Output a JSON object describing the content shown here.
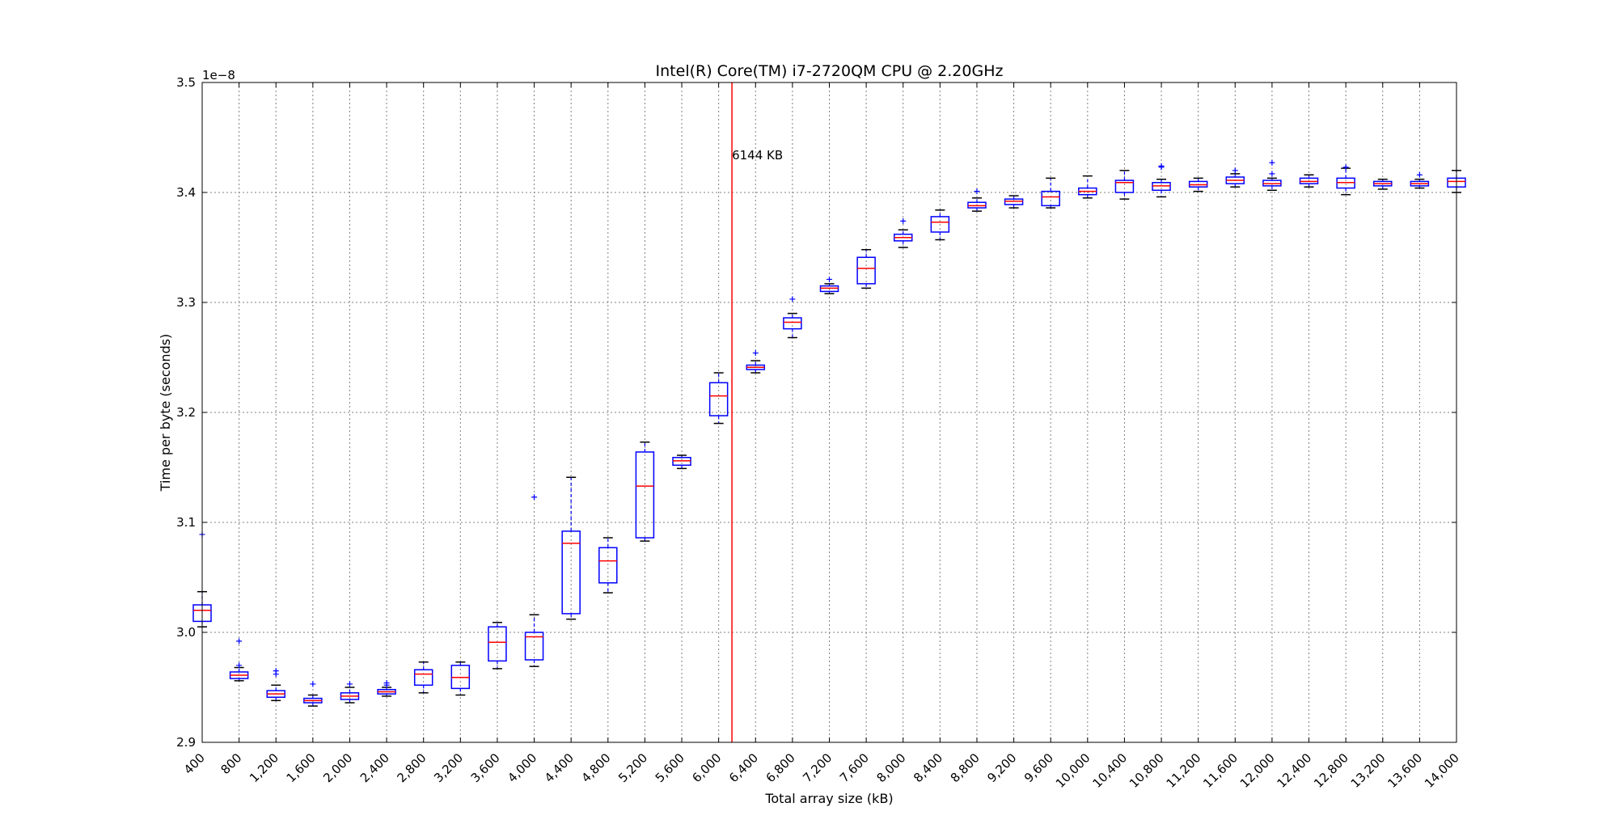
{
  "chart_data": {
    "type": "box",
    "title": "Intel(R) Core(TM) i7-2720QM CPU @ 2.20GHz",
    "xlabel": "Total array size (kB)",
    "ylabel": "Time per byte (seconds)",
    "y_exponent_label": "1e−8",
    "y_scale_factor": 1e-08,
    "ylim": [
      2.9,
      3.5
    ],
    "y_ticks": [
      "2.9",
      "3.0",
      "3.1",
      "3.2",
      "3.3",
      "3.4",
      "3.5"
    ],
    "grid": true,
    "categories": [
      "400",
      "800",
      "1,200",
      "1,600",
      "2,000",
      "2,400",
      "2,800",
      "3,200",
      "3,600",
      "4,000",
      "4,400",
      "4,800",
      "5,200",
      "5,600",
      "6,000",
      "6,400",
      "6,800",
      "7,200",
      "7,600",
      "8,000",
      "8,400",
      "8,800",
      "9,200",
      "9,600",
      "10,000",
      "10,400",
      "10,800",
      "11,200",
      "11,600",
      "12,000",
      "12,400",
      "12,800",
      "13,200",
      "13,600",
      "14,000"
    ],
    "boxes": [
      {
        "whislo": 3.005,
        "q1": 3.01,
        "med": 3.02,
        "q3": 3.025,
        "whishi": 3.037,
        "fliers": [
          3.089
        ]
      },
      {
        "whislo": 2.956,
        "q1": 2.958,
        "med": 2.961,
        "q3": 2.964,
        "whishi": 2.968,
        "fliers": [
          2.97,
          2.992
        ]
      },
      {
        "whislo": 2.938,
        "q1": 2.941,
        "med": 2.944,
        "q3": 2.947,
        "whishi": 2.952,
        "fliers": [
          2.962,
          2.965
        ]
      },
      {
        "whislo": 2.933,
        "q1": 2.936,
        "med": 2.938,
        "q3": 2.94,
        "whishi": 2.943,
        "fliers": [
          2.953
        ]
      },
      {
        "whislo": 2.936,
        "q1": 2.939,
        "med": 2.942,
        "q3": 2.945,
        "whishi": 2.95,
        "fliers": [
          2.953
        ]
      },
      {
        "whislo": 2.942,
        "q1": 2.944,
        "med": 2.946,
        "q3": 2.948,
        "whishi": 2.95,
        "fliers": [
          2.952,
          2.954
        ]
      },
      {
        "whislo": 2.945,
        "q1": 2.952,
        "med": 2.962,
        "q3": 2.966,
        "whishi": 2.973,
        "fliers": []
      },
      {
        "whislo": 2.943,
        "q1": 2.949,
        "med": 2.959,
        "q3": 2.97,
        "whishi": 2.973,
        "fliers": []
      },
      {
        "whislo": 2.967,
        "q1": 2.974,
        "med": 2.991,
        "q3": 3.005,
        "whishi": 3.009,
        "fliers": []
      },
      {
        "whislo": 2.969,
        "q1": 2.975,
        "med": 2.996,
        "q3": 3.0,
        "whishi": 3.016,
        "fliers": [
          3.123
        ]
      },
      {
        "whislo": 3.012,
        "q1": 3.017,
        "med": 3.081,
        "q3": 3.092,
        "whishi": 3.141,
        "fliers": []
      },
      {
        "whislo": 3.036,
        "q1": 3.045,
        "med": 3.065,
        "q3": 3.077,
        "whishi": 3.086,
        "fliers": []
      },
      {
        "whislo": 3.083,
        "q1": 3.086,
        "med": 3.133,
        "q3": 3.164,
        "whishi": 3.173,
        "fliers": []
      },
      {
        "whislo": 3.149,
        "q1": 3.152,
        "med": 3.156,
        "q3": 3.159,
        "whishi": 3.161,
        "fliers": []
      },
      {
        "whislo": 3.19,
        "q1": 3.197,
        "med": 3.215,
        "q3": 3.227,
        "whishi": 3.236,
        "fliers": []
      },
      {
        "whislo": 3.236,
        "q1": 3.239,
        "med": 3.241,
        "q3": 3.243,
        "whishi": 3.247,
        "fliers": [
          3.254
        ]
      },
      {
        "whislo": 3.268,
        "q1": 3.276,
        "med": 3.282,
        "q3": 3.286,
        "whishi": 3.29,
        "fliers": [
          3.303
        ]
      },
      {
        "whislo": 3.308,
        "q1": 3.31,
        "med": 3.313,
        "q3": 3.315,
        "whishi": 3.317,
        "fliers": [
          3.321
        ]
      },
      {
        "whislo": 3.313,
        "q1": 3.317,
        "med": 3.331,
        "q3": 3.341,
        "whishi": 3.348,
        "fliers": []
      },
      {
        "whislo": 3.35,
        "q1": 3.356,
        "med": 3.359,
        "q3": 3.362,
        "whishi": 3.366,
        "fliers": [
          3.374
        ]
      },
      {
        "whislo": 3.357,
        "q1": 3.364,
        "med": 3.373,
        "q3": 3.378,
        "whishi": 3.384,
        "fliers": []
      },
      {
        "whislo": 3.383,
        "q1": 3.386,
        "med": 3.388,
        "q3": 3.391,
        "whishi": 3.395,
        "fliers": [
          3.401
        ]
      },
      {
        "whislo": 3.386,
        "q1": 3.389,
        "med": 3.392,
        "q3": 3.394,
        "whishi": 3.397,
        "fliers": []
      },
      {
        "whislo": 3.386,
        "q1": 3.388,
        "med": 3.396,
        "q3": 3.401,
        "whishi": 3.413,
        "fliers": []
      },
      {
        "whislo": 3.395,
        "q1": 3.398,
        "med": 3.401,
        "q3": 3.404,
        "whishi": 3.415,
        "fliers": []
      },
      {
        "whislo": 3.394,
        "q1": 3.4,
        "med": 3.409,
        "q3": 3.411,
        "whishi": 3.42,
        "fliers": []
      },
      {
        "whislo": 3.396,
        "q1": 3.402,
        "med": 3.406,
        "q3": 3.409,
        "whishi": 3.412,
        "fliers": [
          3.423,
          3.424
        ]
      },
      {
        "whislo": 3.401,
        "q1": 3.405,
        "med": 3.407,
        "q3": 3.41,
        "whishi": 3.413,
        "fliers": []
      },
      {
        "whislo": 3.405,
        "q1": 3.408,
        "med": 3.411,
        "q3": 3.414,
        "whishi": 3.417,
        "fliers": [
          3.42
        ]
      },
      {
        "whislo": 3.402,
        "q1": 3.406,
        "med": 3.408,
        "q3": 3.411,
        "whishi": 3.413,
        "fliers": [
          3.417,
          3.427
        ]
      },
      {
        "whislo": 3.405,
        "q1": 3.408,
        "med": 3.41,
        "q3": 3.413,
        "whishi": 3.416,
        "fliers": []
      },
      {
        "whislo": 3.398,
        "q1": 3.404,
        "med": 3.409,
        "q3": 3.413,
        "whishi": 3.422,
        "fliers": [
          3.423
        ]
      },
      {
        "whislo": 3.403,
        "q1": 3.406,
        "med": 3.408,
        "q3": 3.41,
        "whishi": 3.412,
        "fliers": []
      },
      {
        "whislo": 3.404,
        "q1": 3.406,
        "med": 3.408,
        "q3": 3.41,
        "whishi": 3.412,
        "fliers": [
          3.416
        ]
      },
      {
        "whislo": 3.4,
        "q1": 3.405,
        "med": 3.41,
        "q3": 3.413,
        "whishi": 3.42,
        "fliers": []
      }
    ],
    "reference_line": {
      "x_value": 6144,
      "label": "6144 KB",
      "color": "#ff0000"
    },
    "colors": {
      "box": "#0000ff",
      "median": "#ff0000",
      "whisker_cap": "#000000",
      "flier": "#0000ff",
      "grid": "#808080"
    }
  }
}
